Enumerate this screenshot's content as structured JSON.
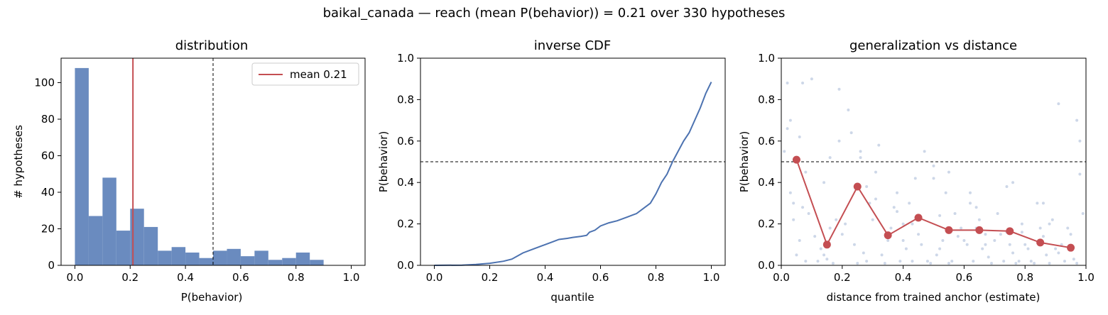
{
  "suptitle": "baikal_canada  —  reach (mean P(behavior)) = 0.21  over 330 hypotheses",
  "colors": {
    "bar": "#6a8bbf",
    "line": "#4c72b0",
    "mean": "#c44e52",
    "scatter": "#b8c6de",
    "threshold": "#000000"
  },
  "chart_data": [
    {
      "type": "bar",
      "title": "distribution",
      "xlabel": "P(behavior)",
      "ylabel": "# hypotheses",
      "xlim": [
        -0.05,
        1.05
      ],
      "ylim": [
        0,
        113.4
      ],
      "xticks": [
        "0.0",
        "0.2",
        "0.4",
        "0.6",
        "0.8",
        "1.0"
      ],
      "yticks": [
        "0",
        "20",
        "40",
        "60",
        "80",
        "100"
      ],
      "bin_width": 0.05,
      "bin_starts": [
        0.0,
        0.05,
        0.1,
        0.15,
        0.2,
        0.25,
        0.3,
        0.35,
        0.4,
        0.45,
        0.5,
        0.55,
        0.6,
        0.65,
        0.7,
        0.75,
        0.8,
        0.85
      ],
      "values": [
        108,
        27,
        48,
        19,
        31,
        21,
        8,
        10,
        7,
        4,
        8,
        9,
        5,
        8,
        3,
        4,
        7,
        3
      ],
      "mean": 0.21,
      "threshold": 0.5,
      "legend": {
        "label": "mean 0.21",
        "placement": "upper right"
      }
    },
    {
      "type": "line",
      "title": "inverse CDF",
      "xlabel": "quantile",
      "ylabel": "P(behavior)",
      "xlim": [
        -0.05,
        1.05
      ],
      "ylim": [
        0,
        1
      ],
      "xticks": [
        "0.0",
        "0.2",
        "0.4",
        "0.6",
        "0.8",
        "1.0"
      ],
      "yticks": [
        "0.0",
        "0.2",
        "0.4",
        "0.6",
        "0.8",
        "1.0"
      ],
      "threshold": 0.5,
      "x": [
        0.0,
        0.1,
        0.15,
        0.2,
        0.25,
        0.28,
        0.3,
        0.32,
        0.35,
        0.38,
        0.4,
        0.43,
        0.45,
        0.48,
        0.5,
        0.53,
        0.55,
        0.56,
        0.58,
        0.6,
        0.63,
        0.66,
        0.7,
        0.73,
        0.75,
        0.78,
        0.8,
        0.82,
        0.84,
        0.86,
        0.88,
        0.9,
        0.92,
        0.94,
        0.96,
        0.98,
        1.0
      ],
      "y": [
        0.0,
        0.001,
        0.004,
        0.01,
        0.02,
        0.03,
        0.045,
        0.06,
        0.075,
        0.09,
        0.1,
        0.115,
        0.125,
        0.13,
        0.135,
        0.14,
        0.145,
        0.16,
        0.17,
        0.19,
        0.205,
        0.215,
        0.235,
        0.25,
        0.27,
        0.3,
        0.345,
        0.4,
        0.44,
        0.5,
        0.55,
        0.6,
        0.64,
        0.7,
        0.76,
        0.83,
        0.885
      ]
    },
    {
      "type": "scatter",
      "title": "generalization vs distance",
      "xlabel": "distance from trained anchor (estimate)",
      "ylabel": "P(behavior)",
      "xlim": [
        0,
        1
      ],
      "ylim": [
        0,
        1
      ],
      "xticks": [
        "0.0",
        "0.2",
        "0.4",
        "0.6",
        "0.8",
        "1.0"
      ],
      "yticks": [
        "0.0",
        "0.2",
        "0.4",
        "0.6",
        "0.8",
        "1.0"
      ],
      "threshold": 0.5,
      "binned_x": [
        0.05,
        0.15,
        0.25,
        0.35,
        0.45,
        0.55,
        0.65,
        0.75,
        0.85,
        0.95
      ],
      "binned_y": [
        0.51,
        0.1,
        0.38,
        0.145,
        0.23,
        0.17,
        0.17,
        0.165,
        0.11,
        0.085
      ],
      "points_x": [
        0.02,
        0.03,
        0.05,
        0.06,
        0.08,
        0.09,
        0.04,
        0.07,
        0.01,
        0.06,
        0.03,
        0.08,
        0.1,
        0.12,
        0.14,
        0.16,
        0.18,
        0.13,
        0.17,
        0.11,
        0.19,
        0.15,
        0.22,
        0.24,
        0.26,
        0.28,
        0.21,
        0.23,
        0.27,
        0.29,
        0.25,
        0.2,
        0.31,
        0.33,
        0.35,
        0.37,
        0.39,
        0.32,
        0.36,
        0.34,
        0.38,
        0.3,
        0.41,
        0.43,
        0.45,
        0.47,
        0.49,
        0.42,
        0.46,
        0.44,
        0.48,
        0.4,
        0.51,
        0.53,
        0.55,
        0.57,
        0.59,
        0.52,
        0.56,
        0.54,
        0.58,
        0.5,
        0.61,
        0.63,
        0.65,
        0.67,
        0.69,
        0.62,
        0.66,
        0.64,
        0.68,
        0.6,
        0.71,
        0.73,
        0.75,
        0.77,
        0.79,
        0.72,
        0.76,
        0.74,
        0.78,
        0.7,
        0.81,
        0.83,
        0.85,
        0.87,
        0.89,
        0.82,
        0.86,
        0.84,
        0.88,
        0.8,
        0.91,
        0.93,
        0.95,
        0.97,
        0.99,
        0.92,
        0.96,
        0.94,
        0.98,
        0.9,
        0.02,
        0.14,
        0.26,
        0.38,
        0.5,
        0.62,
        0.74,
        0.86,
        0.98,
        0.07,
        0.19,
        0.31,
        0.43,
        0.55,
        0.67,
        0.79,
        0.91,
        0.04,
        0.16,
        0.28,
        0.4,
        0.52,
        0.64,
        0.76,
        0.88,
        0.97
      ],
      "points_y": [
        0.88,
        0.7,
        0.05,
        0.62,
        0.45,
        0.25,
        0.3,
        0.88,
        0.55,
        0.12,
        0.35,
        0.02,
        0.9,
        0.02,
        0.05,
        0.18,
        0.22,
        0.08,
        0.01,
        0.14,
        0.6,
        0.03,
        0.75,
        0.1,
        0.52,
        0.02,
        0.2,
        0.64,
        0.06,
        0.3,
        0.01,
        0.15,
        0.45,
        0.05,
        0.12,
        0.28,
        0.02,
        0.58,
        0.18,
        0.01,
        0.35,
        0.22,
        0.08,
        0.02,
        0.15,
        0.55,
        0.01,
        0.3,
        0.1,
        0.42,
        0.02,
        0.2,
        0.05,
        0.12,
        0.01,
        0.25,
        0.18,
        0.08,
        0.02,
        0.35,
        0.14,
        0.48,
        0.1,
        0.02,
        0.22,
        0.15,
        0.01,
        0.3,
        0.08,
        0.18,
        0.04,
        0.12,
        0.25,
        0.02,
        0.1,
        0.01,
        0.2,
        0.15,
        0.06,
        0.38,
        0.02,
        0.12,
        0.08,
        0.01,
        0.18,
        0.05,
        0.22,
        0.02,
        0.14,
        0.3,
        0.01,
        0.1,
        0.06,
        0.02,
        0.15,
        0.01,
        0.25,
        0.1,
        0.03,
        0.18,
        0.44,
        0.08,
        0.66,
        0.4,
        0.55,
        0.26,
        0.42,
        0.35,
        0.16,
        0.3,
        0.6,
        0.28,
        0.85,
        0.32,
        0.2,
        0.45,
        0.1,
        0.16,
        0.78,
        0.22,
        0.52,
        0.38,
        0.12,
        0.24,
        0.28,
        0.4,
        0.2,
        0.7
      ]
    }
  ]
}
